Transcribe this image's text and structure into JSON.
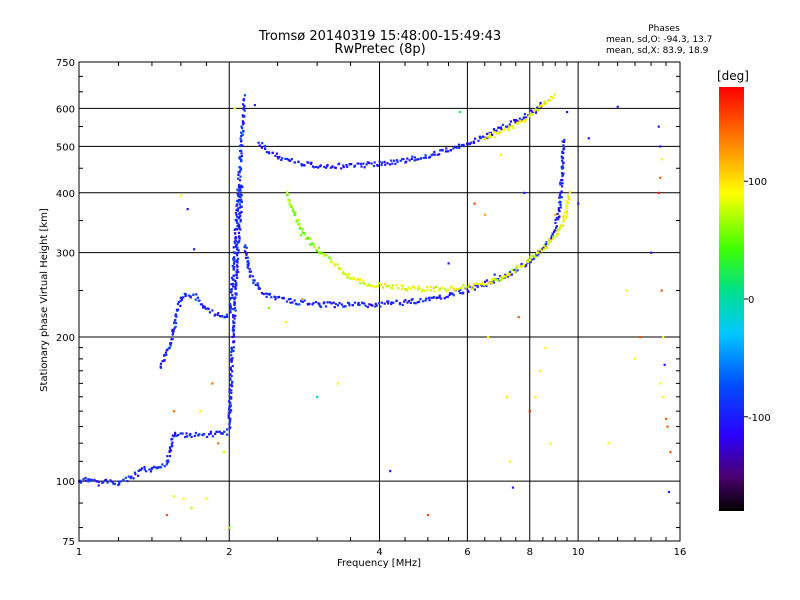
{
  "chart_data": {
    "type": "scatter",
    "title": "Tromsø 20140319 15:48:00-15:49:43",
    "subtitle": "RwPretec (8p)",
    "xlabel": "Frequency [MHz]",
    "ylabel": "Stationary phase Virtual Height [km]",
    "x_scale": "log",
    "y_scale": "log",
    "xlim": [
      1,
      16
    ],
    "ylim": [
      75,
      750
    ],
    "x_ticks": [
      1,
      2,
      4,
      6,
      8,
      10,
      16
    ],
    "y_ticks": [
      75,
      100,
      200,
      300,
      400,
      500,
      600,
      750
    ],
    "grid": true,
    "phase_stats": {
      "heading": "Phases",
      "line_o": "mean, sd,O: -94.3, 13.7",
      "line_x": "mean, sd,X:  83.9, 18.9"
    },
    "colorbar": {
      "label": "[deg]",
      "range": [
        -180,
        180
      ],
      "ticks": [
        100,
        0,
        -100
      ],
      "tick_labels": [
        "100",
        "0",
        "-100"
      ]
    },
    "series": [
      {
        "phase": -95,
        "points": [
          [
            1.0,
            100
          ],
          [
            1.05,
            101
          ],
          [
            1.1,
            99
          ],
          [
            1.15,
            100
          ],
          [
            1.2,
            99
          ],
          [
            1.25,
            101
          ],
          [
            1.3,
            103
          ],
          [
            1.35,
            106
          ],
          [
            1.4,
            105
          ],
          [
            1.45,
            108
          ],
          [
            1.5,
            109
          ],
          [
            1.52,
            116
          ],
          [
            1.55,
            125
          ],
          [
            1.6,
            125
          ],
          [
            1.7,
            125
          ],
          [
            1.8,
            125
          ],
          [
            1.9,
            126
          ],
          [
            1.95,
            126
          ],
          [
            2.0,
            127
          ]
        ]
      },
      {
        "phase": -92,
        "points": [
          [
            1.45,
            174
          ],
          [
            1.48,
            180
          ],
          [
            1.52,
            190
          ],
          [
            1.55,
            210
          ],
          [
            1.58,
            230
          ],
          [
            1.62,
            245
          ],
          [
            1.7,
            244
          ],
          [
            1.8,
            228
          ],
          [
            1.9,
            222
          ],
          [
            1.95,
            222
          ],
          [
            2.0,
            224
          ],
          [
            2.02,
            240
          ],
          [
            2.04,
            280
          ],
          [
            2.06,
            330
          ],
          [
            2.08,
            380
          ],
          [
            2.1,
            450
          ],
          [
            2.12,
            530
          ],
          [
            2.14,
            600
          ],
          [
            2.15,
            640
          ]
        ]
      },
      {
        "phase": -96,
        "points": [
          [
            2.0,
            130
          ],
          [
            2.01,
            150
          ],
          [
            2.02,
            170
          ],
          [
            2.03,
            190
          ],
          [
            2.04,
            210
          ],
          [
            2.05,
            230
          ],
          [
            2.06,
            250
          ],
          [
            2.07,
            270
          ],
          [
            2.08,
            300
          ],
          [
            2.1,
            350
          ],
          [
            2.12,
            420
          ]
        ]
      },
      {
        "phase": -98,
        "points": [
          [
            2.15,
            310
          ],
          [
            2.2,
            270
          ],
          [
            2.3,
            252
          ],
          [
            2.4,
            244
          ],
          [
            2.6,
            238
          ],
          [
            2.8,
            236
          ],
          [
            3.0,
            234
          ],
          [
            3.5,
            233
          ],
          [
            4.0,
            234
          ],
          [
            4.5,
            236
          ],
          [
            5.0,
            240
          ],
          [
            5.5,
            245
          ],
          [
            6.0,
            251
          ],
          [
            6.5,
            258
          ],
          [
            7.0,
            266
          ],
          [
            7.5,
            276
          ],
          [
            8.0,
            288
          ],
          [
            8.5,
            305
          ],
          [
            9.0,
            335
          ],
          [
            9.2,
            380
          ],
          [
            9.3,
            450
          ],
          [
            9.35,
            520
          ]
        ]
      },
      {
        "phase": -100,
        "points": [
          [
            2.3,
            510
          ],
          [
            2.4,
            485
          ],
          [
            2.6,
            468
          ],
          [
            2.8,
            460
          ],
          [
            3.0,
            456
          ],
          [
            3.5,
            455
          ],
          [
            4.0,
            460
          ],
          [
            4.5,
            468
          ],
          [
            5.0,
            478
          ],
          [
            5.5,
            492
          ],
          [
            6.0,
            505
          ],
          [
            6.5,
            525
          ],
          [
            7.0,
            545
          ],
          [
            7.5,
            565
          ],
          [
            8.0,
            585
          ],
          [
            8.3,
            600
          ],
          [
            8.5,
            612
          ]
        ]
      },
      {
        "phase": 85,
        "points": [
          [
            3.2,
            290
          ],
          [
            3.4,
            272
          ],
          [
            3.6,
            262
          ],
          [
            3.8,
            258
          ],
          [
            4.0,
            256
          ],
          [
            4.4,
            254
          ],
          [
            4.8,
            252
          ],
          [
            5.2,
            252
          ],
          [
            5.6,
            252
          ],
          [
            6.0,
            254
          ],
          [
            6.5,
            258
          ],
          [
            7.0,
            266
          ],
          [
            7.5,
            276
          ],
          [
            8.0,
            290
          ],
          [
            8.5,
            305
          ],
          [
            9.0,
            325
          ],
          [
            9.3,
            345
          ],
          [
            9.5,
            370
          ],
          [
            9.6,
            400
          ]
        ]
      },
      {
        "phase": 88,
        "points": [
          [
            6.5,
            520
          ],
          [
            7.0,
            535
          ],
          [
            7.5,
            555
          ],
          [
            8.0,
            580
          ],
          [
            8.5,
            610
          ],
          [
            9.0,
            640
          ]
        ]
      },
      {
        "phase": 60,
        "points": [
          [
            2.6,
            400
          ],
          [
            2.8,
            330
          ],
          [
            3.0,
            305
          ],
          [
            3.2,
            290
          ]
        ]
      }
    ],
    "scattered_echoes": [
      [
        1.6,
        395,
        90
      ],
      [
        1.65,
        370,
        -100
      ],
      [
        1.7,
        305,
        -100
      ],
      [
        1.55,
        93,
        80
      ],
      [
        1.62,
        92,
        90
      ],
      [
        1.68,
        88,
        70
      ],
      [
        1.5,
        85,
        150
      ],
      [
        1.8,
        92,
        90
      ],
      [
        2.0,
        80,
        60
      ],
      [
        1.55,
        140,
        140
      ],
      [
        1.75,
        140,
        90
      ],
      [
        1.85,
        160,
        140
      ],
      [
        1.9,
        120,
        140
      ],
      [
        1.95,
        115,
        80
      ],
      [
        2.05,
        600,
        90
      ],
      [
        2.25,
        610,
        -100
      ],
      [
        2.4,
        230,
        60
      ],
      [
        2.6,
        215,
        90
      ],
      [
        2.8,
        240,
        120
      ],
      [
        3.0,
        150,
        -20
      ],
      [
        3.3,
        160,
        90
      ],
      [
        4.2,
        105,
        -100
      ],
      [
        5.0,
        85,
        150
      ],
      [
        5.5,
        285,
        -100
      ],
      [
        5.8,
        590,
        20
      ],
      [
        6.2,
        380,
        150
      ],
      [
        6.5,
        360,
        120
      ],
      [
        6.6,
        200,
        90
      ],
      [
        6.8,
        270,
        -100
      ],
      [
        7.0,
        480,
        90
      ],
      [
        7.2,
        150,
        90
      ],
      [
        7.3,
        110,
        90
      ],
      [
        7.4,
        97,
        -100
      ],
      [
        7.6,
        220,
        150
      ],
      [
        7.8,
        400,
        -100
      ],
      [
        8.0,
        140,
        170
      ],
      [
        8.2,
        150,
        90
      ],
      [
        8.4,
        170,
        90
      ],
      [
        8.6,
        190,
        90
      ],
      [
        8.8,
        120,
        90
      ],
      [
        9.0,
        360,
        120
      ],
      [
        9.5,
        590,
        -100
      ],
      [
        10.0,
        380,
        -100
      ],
      [
        10.5,
        520,
        -100
      ],
      [
        11.5,
        120,
        90
      ],
      [
        12.0,
        605,
        -100
      ],
      [
        12.5,
        250,
        90
      ],
      [
        13.0,
        180,
        90
      ],
      [
        13.3,
        200,
        150
      ],
      [
        14.0,
        300,
        -100
      ],
      [
        14.5,
        400,
        170
      ],
      [
        14.6,
        430,
        150
      ],
      [
        14.7,
        250,
        150
      ],
      [
        14.8,
        200,
        90
      ],
      [
        14.9,
        175,
        -100
      ],
      [
        15.0,
        135,
        150
      ],
      [
        15.1,
        130,
        150
      ],
      [
        15.2,
        95,
        -100
      ],
      [
        15.3,
        115,
        150
      ],
      [
        14.5,
        550,
        -100
      ],
      [
        14.6,
        500,
        -100
      ],
      [
        14.7,
        470,
        90
      ],
      [
        14.6,
        160,
        90
      ],
      [
        14.8,
        150,
        90
      ]
    ]
  }
}
